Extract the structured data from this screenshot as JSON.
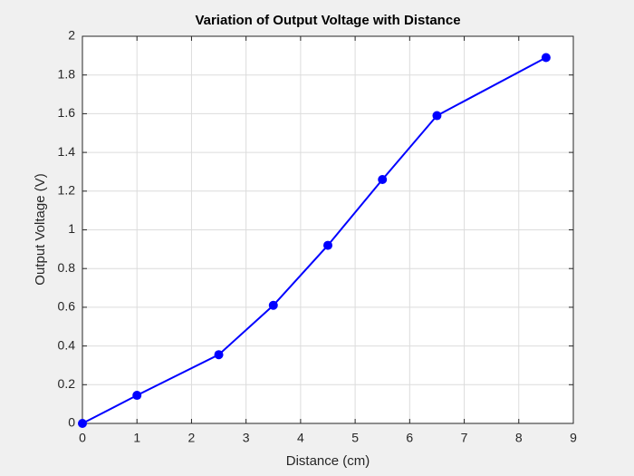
{
  "chart_data": {
    "type": "line",
    "title": "Variation of Output Voltage with Distance",
    "xlabel": "Distance (cm)",
    "ylabel": "Output Voltage (V)",
    "x": [
      0,
      1,
      2.5,
      3.5,
      4.5,
      5.5,
      6.5,
      8.5
    ],
    "values": [
      0,
      0.145,
      0.355,
      0.61,
      0.92,
      1.26,
      1.59,
      1.89
    ],
    "color": "#0000ff",
    "xlim": [
      0,
      9
    ],
    "xticks": [
      0,
      1,
      2,
      3,
      4,
      5,
      6,
      7,
      8,
      9
    ],
    "ylim": [
      0,
      2
    ],
    "yticks": [
      0,
      0.2,
      0.4,
      0.6,
      0.8,
      1,
      1.2,
      1.4,
      1.6,
      1.8,
      2
    ],
    "grid": true
  }
}
